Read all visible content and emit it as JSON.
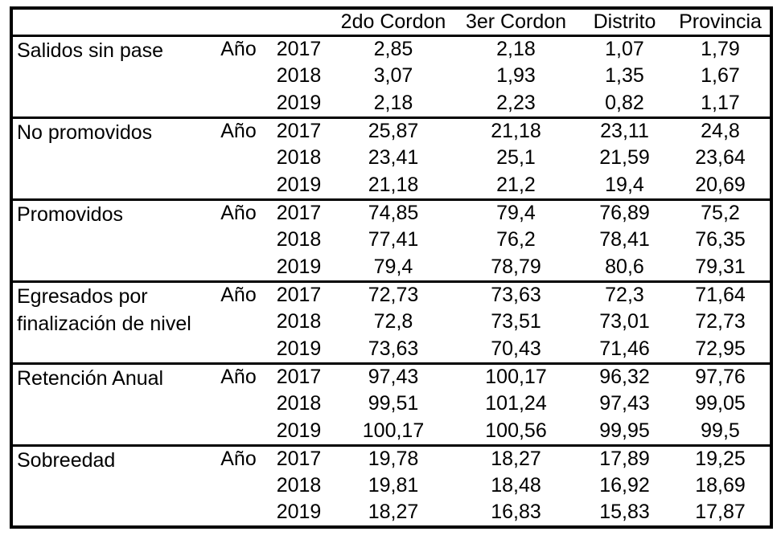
{
  "page": {
    "background_color": "#ffffff",
    "border_color": "#000000",
    "text_color": "#000000"
  },
  "chart_data": {
    "type": "table",
    "title": "",
    "row_label_header": "",
    "year_column_label": "Año",
    "decimal_separator": ",",
    "value_columns": [
      "2do Cordon",
      "3er Cordon",
      "Distrito",
      "Provincia"
    ],
    "years": [
      "2017",
      "2018",
      "2019"
    ],
    "indicators": [
      {
        "label": "Salidos sin pase",
        "rows": [
          {
            "year": "2017",
            "values": [
              2.85,
              2.18,
              1.07,
              1.79
            ]
          },
          {
            "year": "2018",
            "values": [
              3.07,
              1.93,
              1.35,
              1.67
            ]
          },
          {
            "year": "2019",
            "values": [
              2.18,
              2.23,
              0.82,
              1.17
            ]
          }
        ]
      },
      {
        "label": "No promovidos",
        "rows": [
          {
            "year": "2017",
            "values": [
              25.87,
              21.18,
              23.11,
              24.8
            ]
          },
          {
            "year": "2018",
            "values": [
              23.41,
              25.1,
              21.59,
              23.64
            ]
          },
          {
            "year": "2019",
            "values": [
              21.18,
              21.2,
              19.4,
              20.69
            ]
          }
        ]
      },
      {
        "label": "Promovidos",
        "rows": [
          {
            "year": "2017",
            "values": [
              74.85,
              79.4,
              76.89,
              75.2
            ]
          },
          {
            "year": "2018",
            "values": [
              77.41,
              76.2,
              78.41,
              76.35
            ]
          },
          {
            "year": "2019",
            "values": [
              79.4,
              78.79,
              80.6,
              79.31
            ]
          }
        ]
      },
      {
        "label": "Egresados por finalización de nivel",
        "rows": [
          {
            "year": "2017",
            "values": [
              72.73,
              73.63,
              72.3,
              71.64
            ]
          },
          {
            "year": "2018",
            "values": [
              72.8,
              73.51,
              73.01,
              72.73
            ]
          },
          {
            "year": "2019",
            "values": [
              73.63,
              70.43,
              71.46,
              72.95
            ]
          }
        ]
      },
      {
        "label": "Retención Anual",
        "rows": [
          {
            "year": "2017",
            "values": [
              97.43,
              100.17,
              96.32,
              97.76
            ]
          },
          {
            "year": "2018",
            "values": [
              99.51,
              101.24,
              97.43,
              99.05
            ]
          },
          {
            "year": "2019",
            "values": [
              100.17,
              100.56,
              99.95,
              99.5
            ]
          }
        ]
      },
      {
        "label": "Sobreedad",
        "rows": [
          {
            "year": "2017",
            "values": [
              19.78,
              18.27,
              17.89,
              19.25
            ]
          },
          {
            "year": "2018",
            "values": [
              19.81,
              18.48,
              16.92,
              18.69
            ]
          },
          {
            "year": "2019",
            "values": [
              18.27,
              16.83,
              15.83,
              17.87
            ]
          }
        ]
      }
    ]
  }
}
